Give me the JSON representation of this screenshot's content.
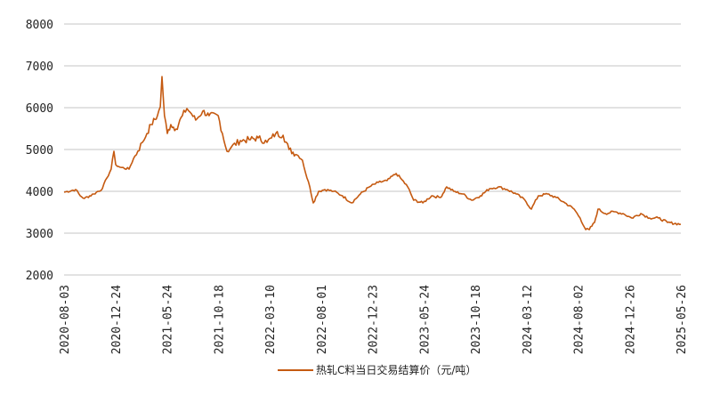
{
  "chart_data": {
    "type": "line",
    "title": "",
    "xlabel": "",
    "ylabel": "",
    "ylim": [
      2000,
      8000
    ],
    "yticks": [
      "2000",
      "3000",
      "4000",
      "5000",
      "6000",
      "7000",
      "8000"
    ],
    "xticks": [
      "2020-08-03",
      "2020-12-24",
      "2021-05-24",
      "2021-10-18",
      "2022-03-10",
      "2022-08-01",
      "2022-12-23",
      "2023-05-24",
      "2023-10-18",
      "2024-03-12",
      "2024-08-02",
      "2024-12-26",
      "2025-05-26"
    ],
    "x_unit": "days since 2020-08-03",
    "xlim": [
      0,
      1757
    ],
    "grid": "horizontal",
    "legend_position": "bottom",
    "color": "#C55A11",
    "series": [
      {
        "name": "热轧C料当日交易结算价（元/吨）",
        "points": [
          [
            0,
            3979
          ],
          [
            33,
            4043
          ],
          [
            46,
            3894
          ],
          [
            58,
            3830
          ],
          [
            84,
            3936
          ],
          [
            109,
            4064
          ],
          [
            122,
            4320
          ],
          [
            134,
            4532
          ],
          [
            142,
            4958
          ],
          [
            147,
            4639
          ],
          [
            160,
            4575
          ],
          [
            185,
            4532
          ],
          [
            198,
            4788
          ],
          [
            210,
            4958
          ],
          [
            223,
            5171
          ],
          [
            236,
            5384
          ],
          [
            248,
            5596
          ],
          [
            266,
            5809
          ],
          [
            274,
            6022
          ],
          [
            279,
            6745
          ],
          [
            286,
            5809
          ],
          [
            294,
            5384
          ],
          [
            304,
            5596
          ],
          [
            319,
            5490
          ],
          [
            337,
            5809
          ],
          [
            350,
            5979
          ],
          [
            363,
            5852
          ],
          [
            375,
            5703
          ],
          [
            395,
            5916
          ],
          [
            413,
            5809
          ],
          [
            439,
            5809
          ],
          [
            451,
            5384
          ],
          [
            464,
            4958
          ],
          [
            477,
            5064
          ],
          [
            502,
            5213
          ],
          [
            527,
            5234
          ],
          [
            553,
            5277
          ],
          [
            578,
            5171
          ],
          [
            591,
            5277
          ],
          [
            603,
            5384
          ],
          [
            624,
            5341
          ],
          [
            641,
            5000
          ],
          [
            667,
            4852
          ],
          [
            679,
            4745
          ],
          [
            692,
            4320
          ],
          [
            700,
            4107
          ],
          [
            710,
            3724
          ],
          [
            725,
            4000
          ],
          [
            743,
            4043
          ],
          [
            768,
            4000
          ],
          [
            793,
            3894
          ],
          [
            819,
            3724
          ],
          [
            844,
            3936
          ],
          [
            870,
            4107
          ],
          [
            895,
            4213
          ],
          [
            920,
            4256
          ],
          [
            946,
            4426
          ],
          [
            958,
            4320
          ],
          [
            979,
            4107
          ],
          [
            996,
            3788
          ],
          [
            1022,
            3724
          ],
          [
            1047,
            3894
          ],
          [
            1072,
            3851
          ],
          [
            1090,
            4107
          ],
          [
            1110,
            4000
          ],
          [
            1136,
            3936
          ],
          [
            1161,
            3788
          ],
          [
            1186,
            3894
          ],
          [
            1212,
            4064
          ],
          [
            1237,
            4107
          ],
          [
            1262,
            4043
          ],
          [
            1288,
            3936
          ],
          [
            1313,
            3788
          ],
          [
            1331,
            3575
          ],
          [
            1351,
            3894
          ],
          [
            1377,
            3936
          ],
          [
            1402,
            3851
          ],
          [
            1427,
            3724
          ],
          [
            1453,
            3575
          ],
          [
            1470,
            3362
          ],
          [
            1486,
            3085
          ],
          [
            1496,
            3085
          ],
          [
            1511,
            3256
          ],
          [
            1521,
            3575
          ],
          [
            1542,
            3469
          ],
          [
            1567,
            3511
          ],
          [
            1592,
            3469
          ],
          [
            1617,
            3362
          ],
          [
            1643,
            3469
          ],
          [
            1668,
            3362
          ],
          [
            1693,
            3362
          ],
          [
            1719,
            3256
          ],
          [
            1757,
            3213
          ]
        ]
      }
    ]
  }
}
